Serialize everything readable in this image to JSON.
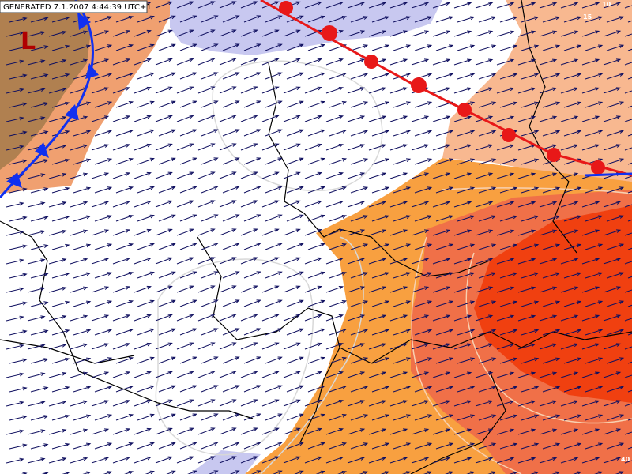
{
  "header": {
    "generated": "GENERATED 7.1.2007 4:44:39 UTC+1"
  },
  "pressure_centers": [
    {
      "label": "L"
    }
  ],
  "isoline_labels": [
    "10",
    "15",
    "40"
  ]
}
